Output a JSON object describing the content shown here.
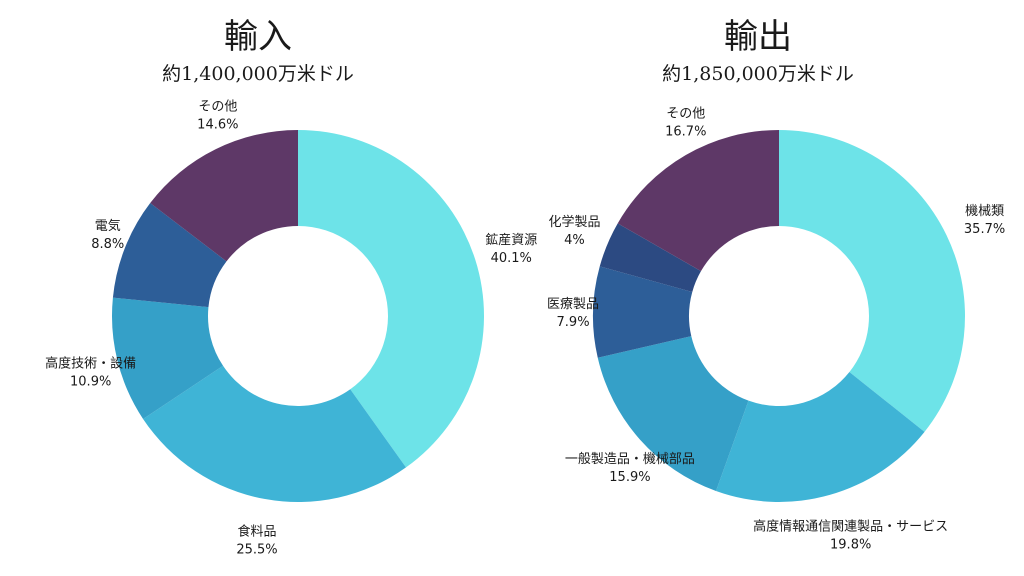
{
  "chart_data": [
    {
      "type": "pie",
      "title": "輸入",
      "subtitle": "約1,400,000万米ドル",
      "categories": [
        "鉱産資源",
        "食料品",
        "高度技術・設備",
        "電気",
        "その他"
      ],
      "values": [
        40.1,
        25.5,
        10.9,
        8.8,
        14.6
      ],
      "value_labels": [
        "40.1%",
        "25.5%",
        "10.9%",
        "8.8%",
        "14.6%"
      ],
      "colors": [
        "#6de3e8",
        "#3fb4d6",
        "#35a0c8",
        "#2d5e98",
        "#5e3867"
      ],
      "donut": true,
      "legend": "none"
    },
    {
      "type": "pie",
      "title": "輸出",
      "subtitle": "約1,850,000万米ドル",
      "categories": [
        "機械類",
        "高度情報通信関連製品・サービス",
        "一般製造品・機械部品",
        "医療製品",
        "化学製品",
        "その他"
      ],
      "values": [
        35.7,
        19.8,
        15.9,
        7.9,
        4,
        16.7
      ],
      "value_labels": [
        "35.7%",
        "19.8%",
        "15.9%",
        "7.9%",
        "4%",
        "16.7%"
      ],
      "colors": [
        "#6de3e8",
        "#3fb4d6",
        "#35a0c8",
        "#2d5e98",
        "#2c4a82",
        "#5e3867"
      ],
      "donut": true,
      "legend": "none"
    }
  ]
}
